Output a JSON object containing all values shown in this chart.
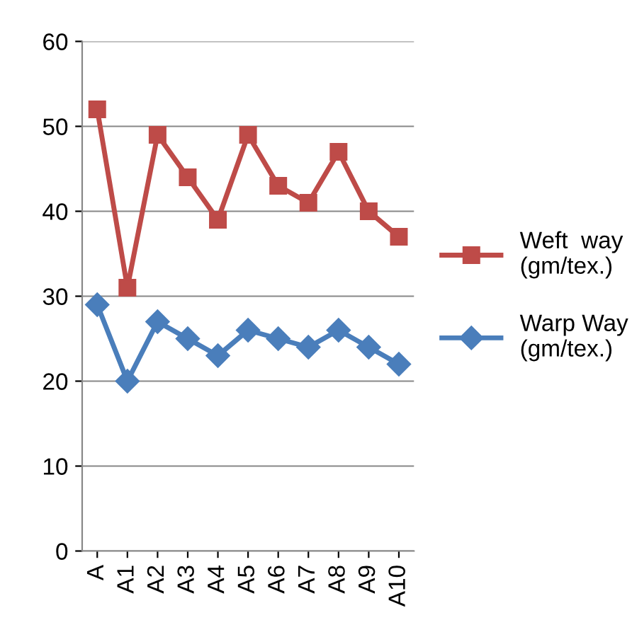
{
  "chart_data": {
    "type": "line",
    "categories": [
      "A",
      "A1",
      "A2",
      "A3",
      "A4",
      "A5",
      "A6",
      "A7",
      "A8",
      "A9",
      "A10"
    ],
    "series": [
      {
        "name": "Weft  way\n(gm/tex.)",
        "color": "#be4b48",
        "marker": "square",
        "values": [
          52,
          31,
          49,
          44,
          39,
          49,
          43,
          41,
          47,
          40,
          37
        ]
      },
      {
        "name": "Warp Way\n(gm/tex.)",
        "color": "#4a7ebb",
        "marker": "diamond",
        "values": [
          29,
          20,
          27,
          25,
          23,
          26,
          25,
          24,
          26,
          24,
          22
        ]
      }
    ],
    "ylim": [
      0,
      60
    ],
    "yticks": [
      0,
      10,
      20,
      30,
      40,
      50,
      60
    ],
    "grid": "y",
    "legend": "right",
    "line_style": "solid"
  }
}
